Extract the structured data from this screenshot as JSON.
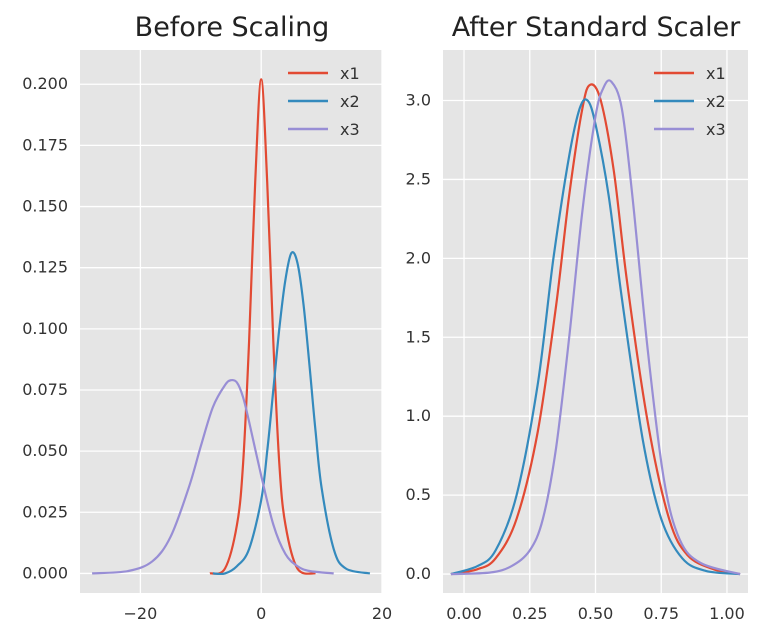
{
  "chart_data": [
    {
      "type": "line",
      "subtype": "kde-density",
      "title": "Before Scaling",
      "xlabel": "",
      "ylabel": "",
      "xlim": [
        -30,
        20
      ],
      "ylim": [
        -0.008,
        0.214
      ],
      "xticks": [
        -20,
        0,
        20
      ],
      "xtick_labels": [
        "−20",
        "0",
        "20"
      ],
      "yticks": [
        0,
        0.025,
        0.05,
        0.075,
        0.1,
        0.125,
        0.15,
        0.175,
        0.2
      ],
      "ytick_labels": [
        "0.000",
        "0.025",
        "0.050",
        "0.075",
        "0.100",
        "0.125",
        "0.150",
        "0.175",
        "0.200"
      ],
      "grid": true,
      "legend": "top-right",
      "series": [
        {
          "name": "x1",
          "color": "#E24A33",
          "x": [
            -8.5,
            -6,
            -4,
            -3,
            -2,
            -1,
            0,
            1,
            2,
            3,
            4,
            6,
            9
          ],
          "y": [
            0.0,
            0.002,
            0.02,
            0.045,
            0.095,
            0.16,
            0.202,
            0.16,
            0.095,
            0.045,
            0.02,
            0.002,
            0.0
          ]
        },
        {
          "name": "x2",
          "color": "#348ABD",
          "x": [
            -8,
            -6,
            -4,
            -2,
            0,
            1,
            2,
            3,
            4,
            5,
            6,
            7,
            8,
            9,
            10,
            12,
            14,
            18
          ],
          "y": [
            0.0,
            0.0,
            0.003,
            0.01,
            0.03,
            0.05,
            0.075,
            0.1,
            0.12,
            0.131,
            0.127,
            0.11,
            0.085,
            0.058,
            0.035,
            0.01,
            0.002,
            0.0
          ]
        },
        {
          "name": "x3",
          "color": "#988ED5",
          "x": [
            -28,
            -22,
            -18,
            -15,
            -12,
            -10,
            -8,
            -6,
            -5,
            -4,
            -3,
            -2,
            0,
            2,
            4,
            6,
            8,
            12
          ],
          "y": [
            0.0,
            0.001,
            0.005,
            0.015,
            0.035,
            0.052,
            0.068,
            0.077,
            0.079,
            0.078,
            0.072,
            0.062,
            0.04,
            0.02,
            0.008,
            0.003,
            0.001,
            0.0
          ]
        }
      ]
    },
    {
      "type": "line",
      "subtype": "kde-density",
      "title": "After Standard Scaler",
      "xlabel": "",
      "ylabel": "",
      "xlim": [
        -0.08,
        1.08
      ],
      "ylim": [
        -0.12,
        3.32
      ],
      "xticks": [
        0,
        0.25,
        0.5,
        0.75,
        1.0
      ],
      "xtick_labels": [
        "0.00",
        "0.25",
        "0.50",
        "0.75",
        "1.00"
      ],
      "yticks": [
        0,
        0.5,
        1.0,
        1.5,
        2.0,
        2.5,
        3.0
      ],
      "ytick_labels": [
        "0.0",
        "0.5",
        "1.0",
        "1.5",
        "2.0",
        "2.5",
        "3.0"
      ],
      "grid": true,
      "legend": "top-right",
      "series": [
        {
          "name": "x1",
          "color": "#E24A33",
          "x": [
            -0.05,
            0.05,
            0.12,
            0.2,
            0.28,
            0.35,
            0.4,
            0.45,
            0.48,
            0.52,
            0.57,
            0.62,
            0.7,
            0.78,
            0.85,
            0.95,
            1.05
          ],
          "y": [
            0.0,
            0.03,
            0.1,
            0.35,
            0.9,
            1.7,
            2.4,
            2.95,
            3.1,
            3.0,
            2.55,
            1.85,
            0.95,
            0.35,
            0.12,
            0.03,
            0.0
          ]
        },
        {
          "name": "x2",
          "color": "#348ABD",
          "x": [
            -0.05,
            0.05,
            0.12,
            0.2,
            0.28,
            0.34,
            0.4,
            0.44,
            0.47,
            0.5,
            0.55,
            0.6,
            0.68,
            0.75,
            0.83,
            0.92,
            1.05
          ],
          "y": [
            0.0,
            0.05,
            0.15,
            0.5,
            1.2,
            2.0,
            2.65,
            2.95,
            3.0,
            2.85,
            2.4,
            1.75,
            0.85,
            0.35,
            0.1,
            0.02,
            0.0
          ]
        },
        {
          "name": "x3",
          "color": "#988ED5",
          "x": [
            -0.05,
            0.1,
            0.18,
            0.25,
            0.3,
            0.35,
            0.4,
            0.45,
            0.5,
            0.53,
            0.56,
            0.6,
            0.64,
            0.7,
            0.76,
            0.82,
            0.9,
            1.05
          ],
          "y": [
            0.0,
            0.01,
            0.05,
            0.15,
            0.35,
            0.8,
            1.5,
            2.3,
            2.9,
            3.08,
            3.12,
            2.95,
            2.4,
            1.4,
            0.6,
            0.22,
            0.07,
            0.0
          ]
        }
      ]
    }
  ]
}
